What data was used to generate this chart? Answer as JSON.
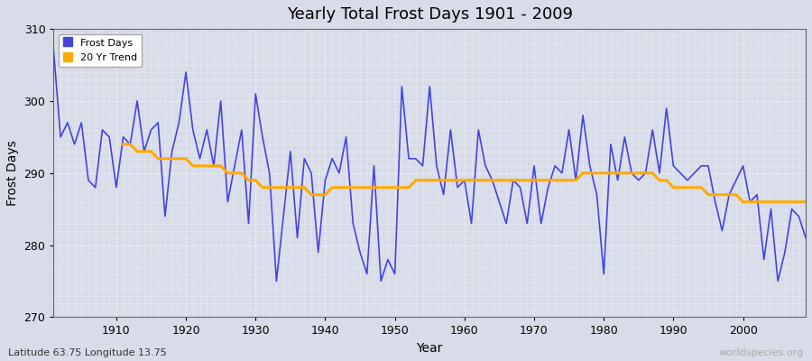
{
  "title": "Yearly Total Frost Days 1901 - 2009",
  "xlabel": "Year",
  "ylabel": "Frost Days",
  "xlim": [
    1901,
    2009
  ],
  "ylim": [
    270,
    310
  ],
  "yticks": [
    270,
    280,
    290,
    300,
    310
  ],
  "xticks": [
    1910,
    1920,
    1930,
    1940,
    1950,
    1960,
    1970,
    1980,
    1990,
    2000
  ],
  "bg_color": "#d8dce8",
  "plot_bg_color": "#d8dce8",
  "frost_color": "#4444dd",
  "trend_color": "#ffaa00",
  "grid_color": "#ffffff",
  "subtitle": "Latitude 63.75 Longitude 13.75",
  "watermark": "worldspecies.org",
  "frost_days": {
    "1901": 307,
    "1902": 295,
    "1903": 297,
    "1904": 294,
    "1905": 297,
    "1906": 289,
    "1907": 288,
    "1908": 296,
    "1909": 295,
    "1910": 288,
    "1911": 295,
    "1912": 294,
    "1913": 300,
    "1914": 293,
    "1915": 296,
    "1916": 297,
    "1917": 284,
    "1918": 293,
    "1919": 297,
    "1920": 304,
    "1921": 296,
    "1922": 292,
    "1923": 296,
    "1924": 291,
    "1925": 300,
    "1926": 286,
    "1927": 291,
    "1928": 296,
    "1929": 283,
    "1930": 301,
    "1931": 295,
    "1932": 290,
    "1933": 275,
    "1934": 284,
    "1935": 293,
    "1936": 281,
    "1937": 292,
    "1938": 290,
    "1939": 279,
    "1940": 289,
    "1941": 292,
    "1942": 290,
    "1943": 295,
    "1944": 283,
    "1945": 279,
    "1946": 276,
    "1947": 291,
    "1948": 275,
    "1949": 278,
    "1950": 276,
    "1951": 302,
    "1952": 292,
    "1953": 292,
    "1954": 291,
    "1955": 302,
    "1956": 291,
    "1957": 287,
    "1958": 296,
    "1959": 288,
    "1960": 289,
    "1961": 283,
    "1962": 296,
    "1963": 291,
    "1964": 289,
    "1965": 286,
    "1966": 283,
    "1967": 289,
    "1968": 288,
    "1969": 283,
    "1970": 291,
    "1971": 283,
    "1972": 288,
    "1973": 291,
    "1974": 290,
    "1975": 296,
    "1976": 289,
    "1977": 298,
    "1978": 291,
    "1979": 287,
    "1980": 276,
    "1981": 294,
    "1982": 289,
    "1983": 295,
    "1984": 290,
    "1985": 289,
    "1986": 290,
    "1987": 296,
    "1988": 290,
    "1989": 299,
    "1990": 291,
    "1991": 290,
    "1992": 289,
    "1993": 290,
    "1994": 291,
    "1995": 291,
    "1996": 286,
    "1997": 282,
    "1998": 287,
    "1999": 289,
    "2000": 291,
    "2001": 286,
    "2002": 287,
    "2003": 278,
    "2004": 285,
    "2005": 275,
    "2006": 279,
    "2007": 285,
    "2008": 284,
    "2009": 281
  },
  "trend_days": {
    "1911": 294,
    "1912": 294,
    "1913": 293,
    "1914": 293,
    "1915": 293,
    "1916": 292,
    "1917": 292,
    "1918": 292,
    "1919": 292,
    "1920": 292,
    "1921": 291,
    "1922": 291,
    "1923": 291,
    "1924": 291,
    "1925": 291,
    "1926": 290,
    "1927": 290,
    "1928": 290,
    "1929": 289,
    "1930": 289,
    "1931": 288,
    "1932": 288,
    "1933": 288,
    "1934": 288,
    "1935": 288,
    "1936": 288,
    "1937": 288,
    "1938": 287,
    "1939": 287,
    "1940": 287,
    "1941": 288,
    "1942": 288,
    "1943": 288,
    "1944": 288,
    "1945": 288,
    "1946": 288,
    "1947": 288,
    "1948": 288,
    "1949": 288,
    "1950": 288,
    "1951": 288,
    "1952": 288,
    "1953": 289,
    "1954": 289,
    "1955": 289,
    "1956": 289,
    "1957": 289,
    "1958": 289,
    "1959": 289,
    "1960": 289,
    "1961": 289,
    "1962": 289,
    "1963": 289,
    "1964": 289,
    "1965": 289,
    "1966": 289,
    "1967": 289,
    "1968": 289,
    "1969": 289,
    "1970": 289,
    "1971": 289,
    "1972": 289,
    "1973": 289,
    "1974": 289,
    "1975": 289,
    "1976": 289,
    "1977": 290,
    "1978": 290,
    "1979": 290,
    "1980": 290,
    "1981": 290,
    "1982": 290,
    "1983": 290,
    "1984": 290,
    "1985": 290,
    "1986": 290,
    "1987": 290,
    "1988": 289,
    "1989": 289,
    "1990": 288,
    "1991": 288,
    "1992": 288,
    "1993": 288,
    "1994": 288,
    "1995": 287,
    "1996": 287,
    "1997": 287,
    "1998": 287,
    "1999": 287,
    "2000": 286,
    "2001": 286,
    "2002": 286,
    "2003": 286,
    "2004": 286,
    "2005": 286,
    "2006": 286,
    "2007": 286,
    "2008": 286,
    "2009": 286
  }
}
